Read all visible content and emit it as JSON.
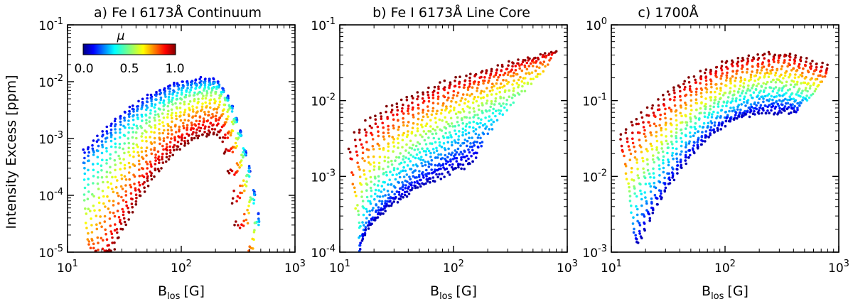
{
  "figure": {
    "ylabel": "Intensity Excess [ppm]",
    "colorbar": {
      "label": "μ",
      "ticks": [
        "0.0",
        "0.5",
        "1.0"
      ],
      "range": [
        0.0,
        1.0
      ],
      "colormap": "jet"
    }
  },
  "chart_data": [
    {
      "type": "scatter",
      "title": "a) Fe I 6173Å Continuum",
      "xlabel_main": "B",
      "xlabel_sub": "los",
      "xlabel_unit": "[G]",
      "ylabel": "Intensity Excess [ppm]",
      "xscale": "log",
      "yscale": "log",
      "xlim": [
        10,
        1000
      ],
      "ylim": [
        1e-05,
        0.1
      ],
      "x_ticks": [
        {
          "base": "10",
          "exp": "1"
        },
        {
          "base": "10",
          "exp": "2"
        },
        {
          "base": "10",
          "exp": "3"
        }
      ],
      "y_ticks": [
        {
          "base": "10",
          "exp": "-5"
        },
        {
          "base": "10",
          "exp": "-4"
        },
        {
          "base": "10",
          "exp": "-3"
        },
        {
          "base": "10",
          "exp": "-2"
        },
        {
          "base": "10",
          "exp": "-1"
        }
      ],
      "color_by": "mu",
      "curves": [
        {
          "mu": 0.1,
          "x_range": [
            14,
            480
          ],
          "peak_x": 180,
          "peak_y": 0.0115,
          "low_x": 14,
          "low_y": 0.0006
        },
        {
          "mu": 0.3,
          "x_range": [
            14,
            480
          ],
          "peak_x": 190,
          "peak_y": 0.009,
          "low_x": 14,
          "low_y": 0.0003
        },
        {
          "mu": 0.5,
          "x_range": [
            14,
            450
          ],
          "peak_x": 200,
          "peak_y": 0.0065,
          "low_x": 15,
          "low_y": 8e-05
        },
        {
          "mu": 0.7,
          "x_range": [
            15,
            420
          ],
          "peak_x": 200,
          "peak_y": 0.0035,
          "low_x": 16,
          "low_y": 2e-05
        },
        {
          "mu": 0.85,
          "x_range": [
            16,
            380
          ],
          "peak_x": 210,
          "peak_y": 0.002,
          "low_x": 20,
          "low_y": 1e-05
        },
        {
          "mu": 1.0,
          "x_range": [
            18,
            320
          ],
          "peak_x": 200,
          "peak_y": 0.0012,
          "low_x": 25,
          "low_y": 1e-05
        }
      ]
    },
    {
      "type": "scatter",
      "title": "b) Fe I 6173Å Line Core",
      "xlabel_main": "B",
      "xlabel_sub": "los",
      "xlabel_unit": "[G]",
      "xscale": "log",
      "yscale": "log",
      "xlim": [
        10,
        1000
      ],
      "ylim": [
        0.0001,
        0.1
      ],
      "x_ticks": [
        {
          "base": "10",
          "exp": "1"
        },
        {
          "base": "10",
          "exp": "2"
        },
        {
          "base": "10",
          "exp": "3"
        }
      ],
      "y_ticks": [
        {
          "base": "10",
          "exp": "-4"
        },
        {
          "base": "10",
          "exp": "-3"
        },
        {
          "base": "10",
          "exp": "-2"
        },
        {
          "base": "10",
          "exp": "-1"
        }
      ],
      "color_by": "mu",
      "curves": [
        {
          "mu": 1.0,
          "x_range": [
            12,
            800
          ],
          "start_y": 0.0022,
          "end_y": 0.045
        },
        {
          "mu": 0.8,
          "x_range": [
            13,
            700
          ],
          "start_y": 0.0009,
          "end_y": 0.035
        },
        {
          "mu": 0.6,
          "x_range": [
            14,
            550
          ],
          "start_y": 0.0004,
          "end_y": 0.02
        },
        {
          "mu": 0.4,
          "x_range": [
            15,
            300
          ],
          "start_y": 0.0002,
          "end_y": 0.008
        },
        {
          "mu": 0.2,
          "x_range": [
            15,
            180
          ],
          "start_y": 0.0001,
          "end_y": 0.003
        },
        {
          "mu": 0.05,
          "x_range": [
            15,
            150
          ],
          "start_y": 0.0001,
          "end_y": 0.0015
        }
      ]
    },
    {
      "type": "scatter",
      "title": "c) 1700Å",
      "xlabel_main": "B",
      "xlabel_sub": "los",
      "xlabel_unit": "[G]",
      "xscale": "log",
      "yscale": "log",
      "xlim": [
        10,
        1000
      ],
      "ylim": [
        0.001,
        1
      ],
      "x_ticks": [
        {
          "base": "10",
          "exp": "1"
        },
        {
          "base": "10",
          "exp": "2"
        },
        {
          "base": "10",
          "exp": "3"
        }
      ],
      "y_ticks": [
        {
          "base": "10",
          "exp": "-3"
        },
        {
          "base": "10",
          "exp": "-2"
        },
        {
          "base": "10",
          "exp": "-1"
        },
        {
          "base": "10",
          "exp": "0"
        }
      ],
      "color_by": "mu",
      "curves": [
        {
          "mu": 1.0,
          "x_range": [
            12,
            800
          ],
          "start_y": 0.035,
          "peak_x": 350,
          "peak_y": 0.42,
          "end_y": 0.28
        },
        {
          "mu": 0.8,
          "x_range": [
            13,
            750
          ],
          "start_y": 0.018,
          "peak_x": 350,
          "peak_y": 0.3,
          "end_y": 0.22
        },
        {
          "mu": 0.6,
          "x_range": [
            14,
            650
          ],
          "start_y": 0.008,
          "peak_x": 350,
          "peak_y": 0.2,
          "end_y": 0.15
        },
        {
          "mu": 0.4,
          "x_range": [
            15,
            550
          ],
          "start_y": 0.004,
          "peak_x": 300,
          "peak_y": 0.13,
          "end_y": 0.11
        },
        {
          "mu": 0.2,
          "x_range": [
            16,
            450
          ],
          "start_y": 0.0018,
          "peak_x": 300,
          "peak_y": 0.09,
          "end_y": 0.085
        },
        {
          "mu": 0.05,
          "x_range": [
            17,
            400
          ],
          "start_y": 0.0012,
          "peak_x": 250,
          "peak_y": 0.07,
          "end_y": 0.07
        }
      ]
    }
  ]
}
